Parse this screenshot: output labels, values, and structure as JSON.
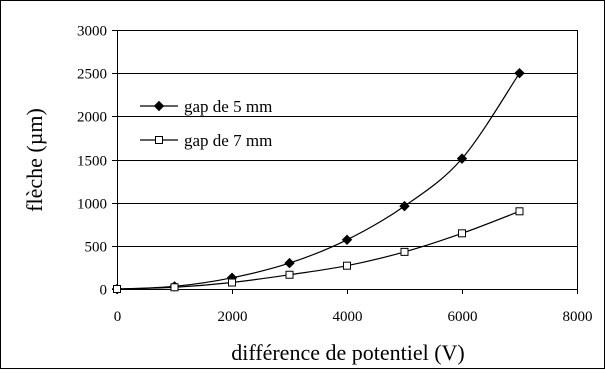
{
  "chart_data": {
    "type": "line",
    "title": "",
    "xlabel": "différence de potentiel (V)",
    "ylabel": "flèche (µm)",
    "xlim": [
      0,
      8000
    ],
    "ylim": [
      0,
      3000
    ],
    "xticks": [
      0,
      2000,
      4000,
      6000,
      8000
    ],
    "yticks": [
      0,
      500,
      1000,
      1500,
      2000,
      2500,
      3000
    ],
    "grid": "horizontal",
    "legend_position": "top-left",
    "series": [
      {
        "name": "gap de 5 mm",
        "marker": "filled-diamond",
        "color": "#000000",
        "x": [
          0,
          1000,
          2000,
          3000,
          4000,
          5000,
          6000,
          7000
        ],
        "y": [
          0,
          30,
          130,
          300,
          570,
          960,
          1510,
          2500
        ]
      },
      {
        "name": "gap de 7 mm",
        "marker": "open-square",
        "color": "#000000",
        "x": [
          0,
          1000,
          2000,
          3000,
          4000,
          5000,
          6000,
          7000
        ],
        "y": [
          0,
          20,
          75,
          165,
          270,
          430,
          645,
          900
        ]
      }
    ]
  }
}
